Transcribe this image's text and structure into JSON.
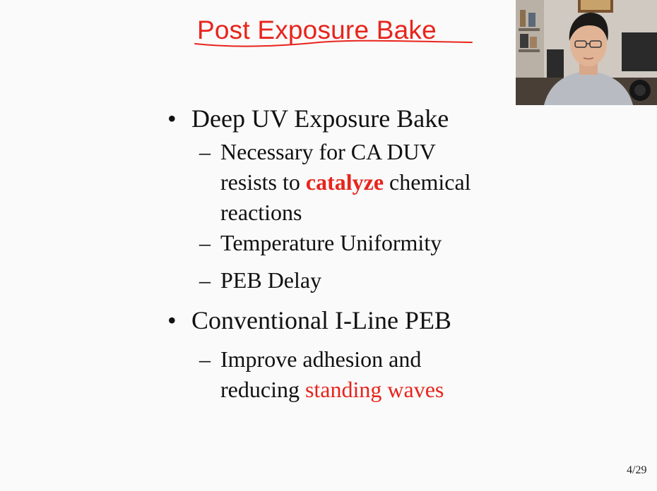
{
  "slide": {
    "title": "Post Exposure Bake",
    "bullets": [
      {
        "text": "Deep UV Exposure Bake",
        "subs": [
          {
            "line1": "Necessary for CA DUV",
            "line2_before": "resists to ",
            "line2_highlight": "catalyze",
            "line2_after": " chemical",
            "line3": "reactions"
          },
          {
            "text": "Temperature Uniformity"
          },
          {
            "text": "PEB Delay"
          }
        ]
      },
      {
        "text": "Conventional I-Line PEB",
        "subs": [
          {
            "line1": "Improve adhesion and",
            "line2_before": "reducing ",
            "line2_highlight": "standing waves"
          }
        ]
      }
    ],
    "page_number": "4/29",
    "bullet_glyph": "•",
    "dash_glyph": "–"
  },
  "colors": {
    "accent_red": "#e8241c",
    "text": "#111111",
    "background": "#fafafa"
  }
}
